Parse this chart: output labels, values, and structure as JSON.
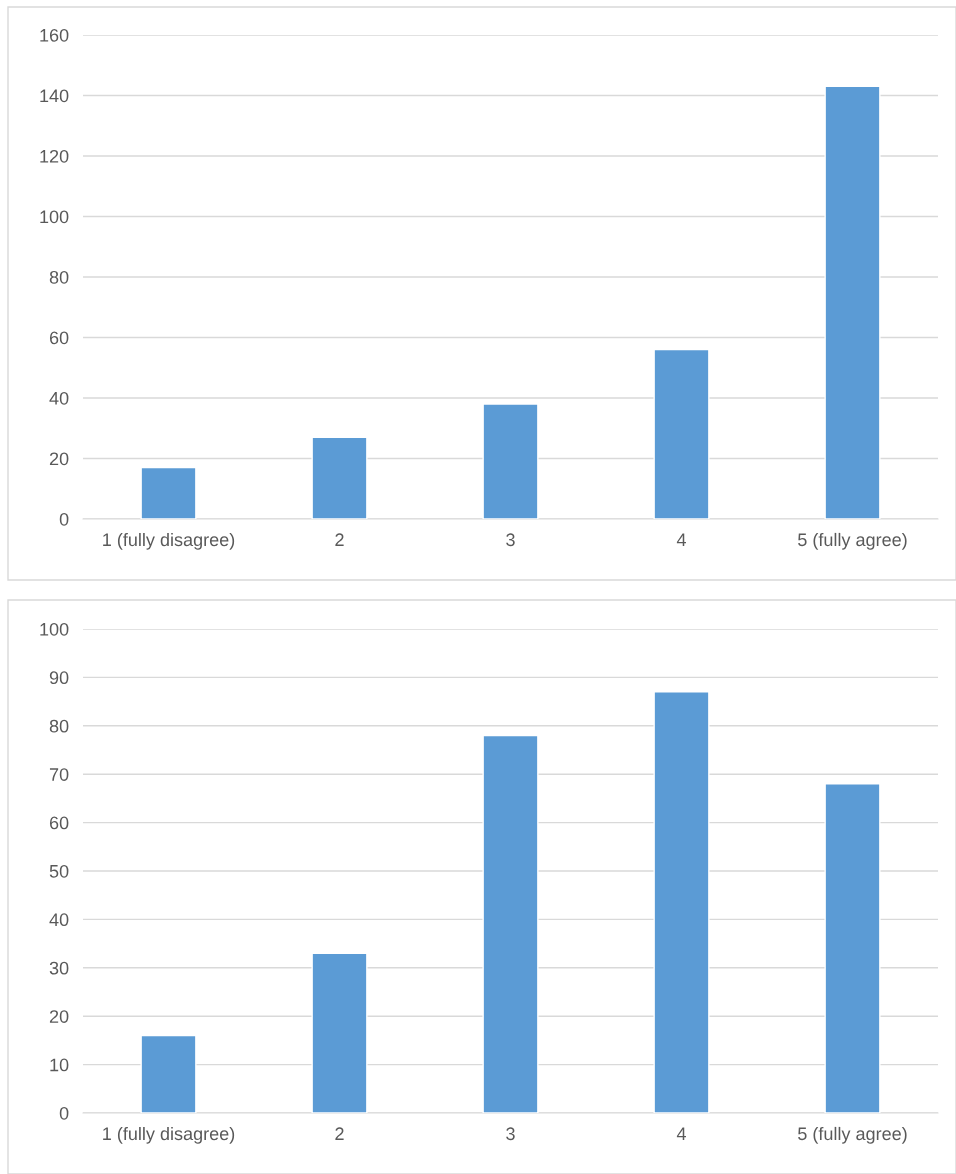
{
  "chart_data": [
    {
      "type": "bar",
      "categories": [
        "1 (fully disagree)",
        "2",
        "3",
        "4",
        "5 (fully agree)"
      ],
      "values": [
        17,
        27,
        38,
        56,
        143
      ],
      "color": "#5b9bd5",
      "ylim": [
        0,
        160
      ],
      "yticks": [
        0,
        20,
        40,
        60,
        80,
        100,
        120,
        140,
        160
      ],
      "grid": "y",
      "legend": false
    },
    {
      "type": "bar",
      "categories": [
        "1 (fully disagree)",
        "2",
        "3",
        "4",
        "5 (fully agree)"
      ],
      "values": [
        16,
        33,
        78,
        87,
        68
      ],
      "color": "#5b9bd5",
      "ylim": [
        0,
        100
      ],
      "yticks": [
        0,
        10,
        20,
        30,
        40,
        50,
        60,
        70,
        80,
        90,
        100
      ],
      "grid": "y",
      "legend": false
    }
  ]
}
